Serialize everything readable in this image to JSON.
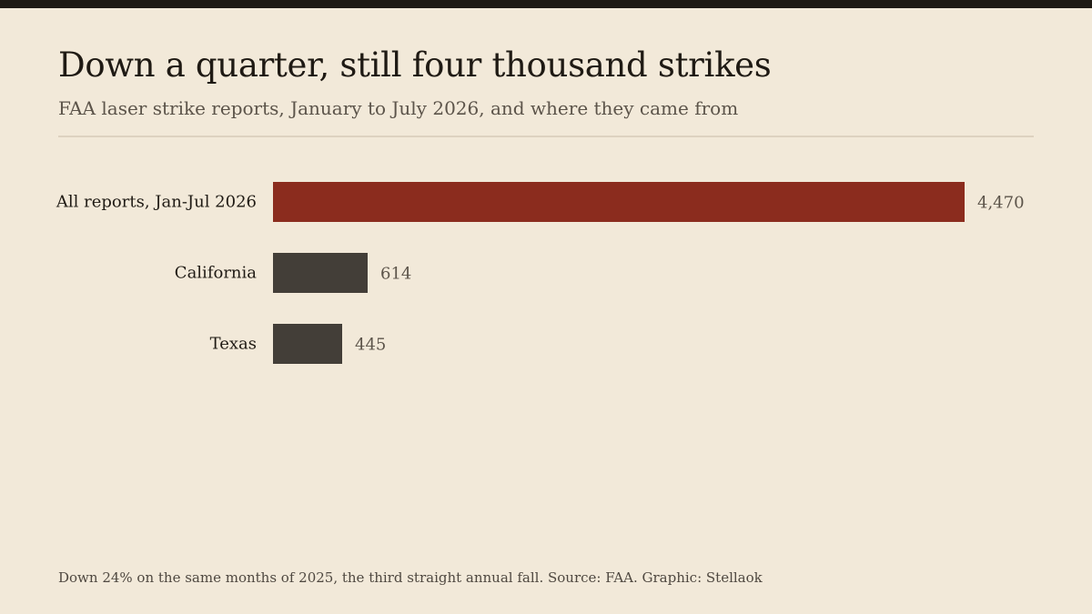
{
  "title": "Down a quarter, still four thousand strikes",
  "subtitle": "FAA laser strike reports, January to July 2026, and where they came from",
  "footer": "Down 24% on the same months of 2025, the third straight annual fall. Source: FAA. Graphic: Stellaok",
  "colors": {
    "background": "#f2e9d9",
    "topbar": "#1f1a14",
    "title": "#1f1a14",
    "subtitle": "#5c544a",
    "rule": "#ddd2c0",
    "accent": "#8b2c1e",
    "secondary": "#433e38",
    "category_label": "#1f1a14",
    "value_label": "#5c544a",
    "footer": "#4f4840"
  },
  "chart_data": {
    "type": "bar",
    "orientation": "horizontal",
    "categories": [
      "All reports, Jan-Jul 2026",
      "California",
      "Texas"
    ],
    "values": [
      4470,
      614,
      445
    ],
    "value_labels": [
      "4,470",
      "614",
      "445"
    ],
    "highlight": [
      true,
      false,
      false
    ],
    "xlim": [
      0,
      4470
    ],
    "grid": false,
    "legend": "none",
    "title": "Down a quarter, still four thousand strikes",
    "xlabel": "",
    "ylabel": ""
  }
}
